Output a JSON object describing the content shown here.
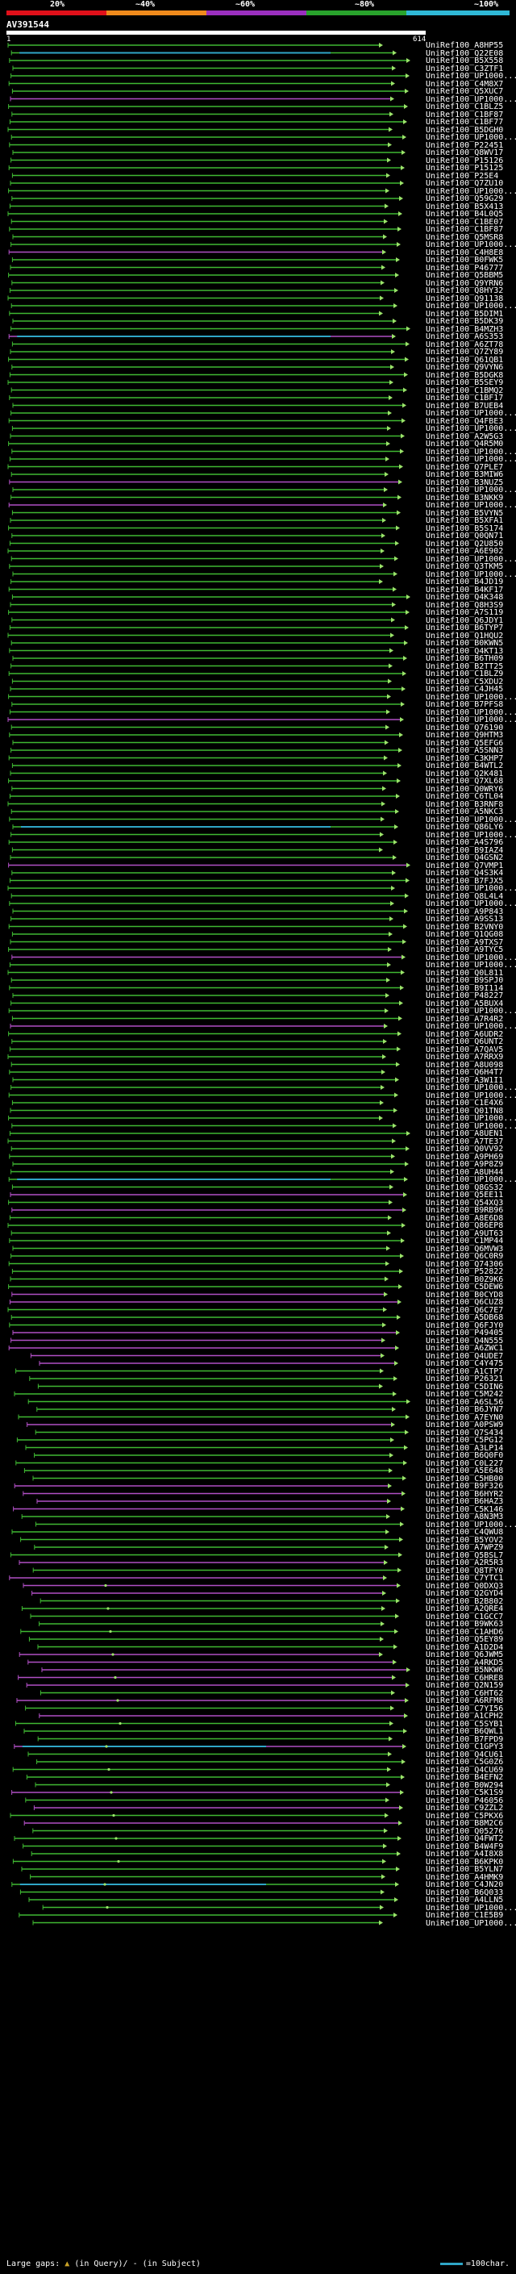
{
  "colors": {
    "background": "#000000",
    "hit_green": "#3fb832",
    "hit_purple": "#b04fc4",
    "hit_cyan": "#2fa6c7",
    "tip": "#9be36a",
    "scale": [
      "#e0101a",
      "#ef8a1c",
      "#9b2fbf",
      "#29a32c",
      "#2fb8d6"
    ]
  },
  "scale_labels": [
    "20%",
    "~40%",
    "~60%",
    "~80%",
    "~100%"
  ],
  "query": {
    "name": "AV391544",
    "start_label": "1",
    "end_label": "614"
  },
  "hits": [
    "UniRef100_A8HP55",
    "UniRef100_Q22E08",
    "UniRef100_B5X558",
    "UniRef100_C3ZTF1",
    "UniRef100_UP1000...",
    "UniRef100_C4M8X7",
    "UniRef100_Q5XUC7",
    "UniRef100_UP1000...",
    "UniRef100_C1BLZ5",
    "UniRef100_C1BF87",
    "UniRef100_C1BF77",
    "UniRef100_B5DGH0",
    "UniRef100_UP1000...",
    "UniRef100_P22451",
    "UniRef100_Q8WV17",
    "UniRef100_P15126",
    "UniRef100_P15125",
    "UniRef100_P25E4",
    "UniRef100_Q7ZU10",
    "UniRef100_UP1000...",
    "UniRef100_Q59G29",
    "UniRef100_B5X413",
    "UniRef100_B4L0Q5",
    "UniRef100_C1BE07",
    "UniRef100_C1BF87",
    "UniRef100_Q5MSR8",
    "UniRef100_UP1000...",
    "UniRef100_C4H8E8",
    "UniRef100_B0FWK5",
    "UniRef100_P46777",
    "UniRef100_Q5BBM5",
    "UniRef100_Q9YRN6",
    "UniRef100_Q8HY32",
    "UniRef100_Q91138",
    "UniRef100_UP1000...",
    "UniRef100_B5DIM1",
    "UniRef100_B5DK39",
    "UniRef100_B4MZH3",
    "UniRef100_A6S353",
    "UniRef100_A6ZT78",
    "UniRef100_Q7ZY89",
    "UniRef100_Q61QB1",
    "UniRef100_Q9VYN6",
    "UniRef100_B5DGK8",
    "UniRef100_B5SEY9",
    "UniRef100_C1BMQ2",
    "UniRef100_C1BF17",
    "UniRef100_B7UEB4",
    "UniRef100_UP1000...",
    "UniRef100_Q4FBE3",
    "UniRef100_UP1000...",
    "UniRef100_A2W5G3",
    "UniRef100_Q4R5M0",
    "UniRef100_UP1000...",
    "UniRef100_UP1000...",
    "UniRef100_Q7PLE7",
    "UniRef100_B3MIW6",
    "UniRef100_B3NUZ5",
    "UniRef100_UP1000...",
    "UniRef100_B3NKK9",
    "UniRef100_UP1000...",
    "UniRef100_B5VYN5",
    "UniRef100_B5XFA1",
    "UniRef100_B5S174",
    "UniRef100_Q0QN71",
    "UniRef100_Q2U850",
    "UniRef100_A6E902",
    "UniRef100_UP1000...",
    "UniRef100_Q3TKM5",
    "UniRef100_UP1000...",
    "UniRef100_B4JD19",
    "UniRef100_B4KF17",
    "UniRef100_Q4K348",
    "UniRef100_Q8H3S9",
    "UniRef100_A7S119",
    "UniRef100_Q6JDY1",
    "UniRef100_B6TYP7",
    "UniRef100_Q1HQU2",
    "UniRef100_B0KWN5",
    "UniRef100_Q4KT13",
    "UniRef100_B6TH09",
    "UniRef100_B2TT25",
    "UniRef100_C1BLZ9",
    "UniRef100_C5XDU2",
    "UniRef100_C4JH45",
    "UniRef100_UP1000...",
    "UniRef100_B7PFS8",
    "UniRef100_UP1000...",
    "UniRef100_UP1000...",
    "UniRef100_Q76190",
    "UniRef100_Q9HTM3",
    "UniRef100_Q5EFG6",
    "UniRef100_A5SNN3",
    "UniRef100_C3KHP7",
    "UniRef100_B4WTL2",
    "UniRef100_Q2K481",
    "UniRef100_Q7XL68",
    "UniRef100_Q0WRY6",
    "UniRef100_C6TL04",
    "UniRef100_B3RNF8",
    "UniRef100_A5NKC3",
    "UniRef100_UP1000...",
    "UniRef100_Q86LY6",
    "UniRef100_UP1000...",
    "UniRef100_A4S796",
    "UniRef100_B9IAZ4",
    "UniRef100_Q4GSN2",
    "UniRef100_Q7VMP1",
    "UniRef100_Q4S3K4",
    "UniRef100_B7FJX5",
    "UniRef100_UP1000...",
    "UniRef100_Q8L4L4",
    "UniRef100_UP1000...",
    "UniRef100_A9P843",
    "UniRef100_A9SS13",
    "UniRef100_B2VNY0",
    "UniRef100_Q1QG08",
    "UniRef100_A9TXS7",
    "UniRef100_A9TYC5",
    "UniRef100_UP1000...",
    "UniRef100_UP1000...",
    "UniRef100_Q0L811",
    "UniRef100_B9SPJ0",
    "UniRef100_B9I114",
    "UniRef100_P48227",
    "UniRef100_A5BUX4",
    "UniRef100_UP1000...",
    "UniRef100_A7R4R2",
    "UniRef100_UP1000...",
    "UniRef100_A6UDR2",
    "UniRef100_Q6UNT2",
    "UniRef100_A7QAV5",
    "UniRef100_A7RRX9",
    "UniRef100_A8U098",
    "UniRef100_Q6H4T7",
    "UniRef100_A3W1I1",
    "UniRef100_UP1000...",
    "UniRef100_UP1000...",
    "UniRef100_C1E4X6",
    "UniRef100_Q01TN8",
    "UniRef100_UP1000...",
    "UniRef100_UP1000...",
    "UniRef100_A8UEN1",
    "UniRef100_A7TE37",
    "UniRef100_Q0VV92",
    "UniRef100_A9PH69",
    "UniRef100_A9P8Z9",
    "UniRef100_A8UH44",
    "UniRef100_UP1000...",
    "UniRef100_Q8GS32",
    "UniRef100_Q5EE11",
    "UniRef100_Q54XQ3",
    "UniRef100_B9RB96",
    "UniRef100_A8E6D8",
    "UniRef100_Q86EP8",
    "UniRef100_A9UT63",
    "UniRef100_C1MP44",
    "UniRef100_Q6MVW3",
    "UniRef100_Q6C0R9",
    "UniRef100_Q74306",
    "UniRef100_P52822",
    "UniRef100_B0Z9K6",
    "UniRef100_C5DEW6",
    "UniRef100_B0CYD8",
    "UniRef100_Q6CUZ8",
    "UniRef100_Q6C7E7",
    "UniRef100_A5DB68",
    "UniRef100_Q6FJY0",
    "UniRef100_P49405",
    "UniRef100_Q4N555",
    "UniRef100_A6ZWC1",
    "UniRef100_Q4UDE7",
    "UniRef100_C4Y475",
    "UniRef100_A1CTP7",
    "UniRef100_P26321",
    "UniRef100_C5DIN6",
    "UniRef100_C5M242",
    "UniRef100_A6SL56",
    "UniRef100_B6JYN7",
    "UniRef100_A7EYN0",
    "UniRef100_A0PSW9",
    "UniRef100_Q7S434",
    "UniRef100_C5PG12",
    "UniRef100_A3LP14",
    "UniRef100_B6Q0F0",
    "UniRef100_C0L227",
    "UniRef100_A5E648",
    "UniRef100_C5HB00",
    "UniRef100_B9F326",
    "UniRef100_B6HYR2",
    "UniRef100_B6HAZ3",
    "UniRef100_C5K146",
    "UniRef100_A8N3M3",
    "UniRef100_UP1000...",
    "UniRef100_C4QWU8",
    "UniRef100_B5YOV2",
    "UniRef100_A7WPZ9",
    "UniRef100_Q5BSL7",
    "UniRef100_A2R5R3",
    "UniRef100_Q8TFY0",
    "UniRef100_C7YTC1",
    "UniRef100_Q0DXQ3",
    "UniRef100_Q2GYD4",
    "UniRef100_B2B802",
    "UniRef100_A2QRE4",
    "UniRef100_C1GCC7",
    "UniRef100_B9WK63",
    "UniRef100_C1AHD6",
    "UniRef100_Q5EY89",
    "UniRef100_A1D2D4",
    "UniRef100_Q6JWM5",
    "UniRef100_A4RKD5",
    "UniRef100_B5NKW6",
    "UniRef100_C6HRE8",
    "UniRef100_Q2N159",
    "UniRef100_C6HT62",
    "UniRef100_A6RFM8",
    "UniRef100_C7YI56",
    "UniRef100_A1CPH2",
    "UniRef100_C5SYB1",
    "UniRef100_B6QWL1",
    "UniRef100_B7FPD9",
    "UniRef100_C1GPY3",
    "UniRef100_Q4CU61",
    "UniRef100_C5G0Z6",
    "UniRef100_Q4CU69",
    "UniRef100_B4EFN2",
    "UniRef100_B0W294",
    "UniRef100_C5K1S9",
    "UniRef100_P46056",
    "UniRef100_C9ZZL2",
    "UniRef100_C5PKX6",
    "UniRef100_B8M2C6",
    "UniRef100_Q05276",
    "UniRef100_Q4FWT2",
    "UniRef100_B4W4F9",
    "UniRef100_A4I8X8",
    "UniRef100_B6KPK0",
    "UniRef100_B5YLN7",
    "UniRef100_A4HMK9",
    "UniRef100_C4JN20",
    "UniRef100_B6Q033",
    "UniRef100_A4LLN5",
    "UniRef100_UP1000...",
    "UniRef100_C1E5B9",
    "UniRef100_UP1000..."
  ],
  "footer": {
    "left_label": "Large gaps:",
    "left_marker": "▲",
    "left_query": "(in Query)",
    "left_sep": "/",
    "left_marker2": "-",
    "left_subject": "(in Subject)",
    "right_label": "=100char."
  }
}
